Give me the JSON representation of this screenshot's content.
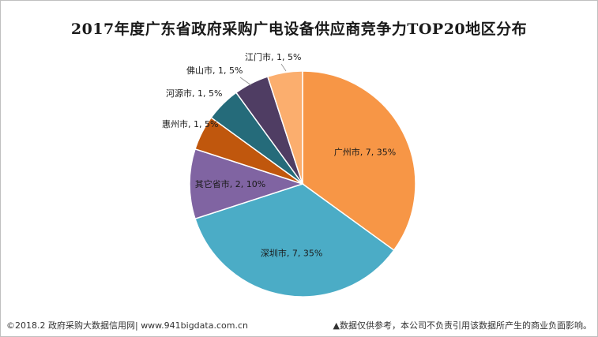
{
  "chart_data": {
    "type": "pie",
    "title": "2017年度广东省政府采购广电设备供应商竞争力TOP20地区分布",
    "slices": [
      {
        "label": "广州市, 7, 35%",
        "name": "广州市",
        "value": 7,
        "percent": 35,
        "color": "#f79646"
      },
      {
        "label": "深圳市, 7, 35%",
        "name": "深圳市",
        "value": 7,
        "percent": 35,
        "color": "#4bacc6"
      },
      {
        "label": "其它省市, 2, 10%",
        "name": "其它省市",
        "value": 2,
        "percent": 10,
        "color": "#8064a2"
      },
      {
        "label": "惠州市, 1, 5%",
        "name": "惠州市",
        "value": 1,
        "percent": 5,
        "color": "#c0570d"
      },
      {
        "label": "河源市, 1, 5%",
        "name": "河源市",
        "value": 1,
        "percent": 5,
        "color": "#256b7a"
      },
      {
        "label": "佛山市, 1, 5%",
        "name": "佛山市",
        "value": 1,
        "percent": 5,
        "color": "#4f3d63"
      },
      {
        "label": "江门市, 1, 5%",
        "name": "江门市",
        "value": 1,
        "percent": 5,
        "color": "#fbae6e"
      }
    ]
  },
  "footer": {
    "source": "©2018.2 政府采购大数据信用网| www.941bigdata.com.cn",
    "disclaimer": "▲数据仅供参考，本公司不负责引用该数据所产生的商业负面影响。"
  }
}
